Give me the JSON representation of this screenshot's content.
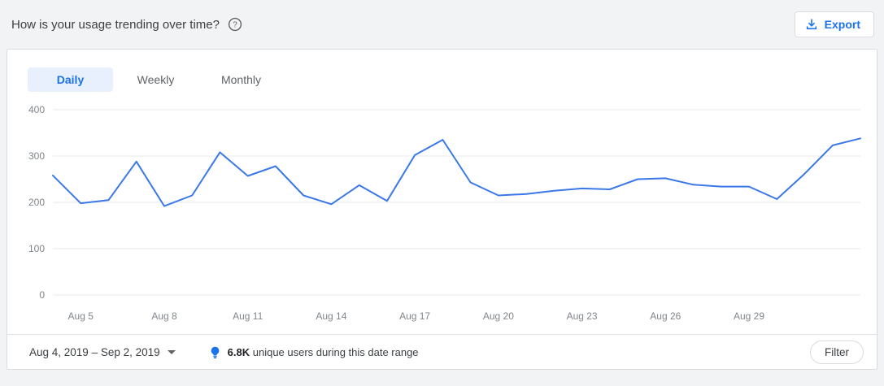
{
  "header": {
    "title": "How is your usage trending over time?",
    "export_label": "Export"
  },
  "tabs": [
    {
      "label": "Daily",
      "active": true
    },
    {
      "label": "Weekly",
      "active": false
    },
    {
      "label": "Monthly",
      "active": false
    }
  ],
  "chart_data": {
    "type": "line",
    "title": "",
    "xlabel": "",
    "ylabel": "",
    "ylim": [
      0,
      400
    ],
    "y_ticks": [
      0,
      100,
      200,
      300,
      400
    ],
    "grid": true,
    "legend": "none",
    "line_color": "#3b78e7",
    "grid_color": "#e8eaed",
    "x": [
      "Aug 4",
      "Aug 5",
      "Aug 6",
      "Aug 7",
      "Aug 8",
      "Aug 9",
      "Aug 10",
      "Aug 11",
      "Aug 12",
      "Aug 13",
      "Aug 14",
      "Aug 15",
      "Aug 16",
      "Aug 17",
      "Aug 18",
      "Aug 19",
      "Aug 20",
      "Aug 21",
      "Aug 22",
      "Aug 23",
      "Aug 24",
      "Aug 25",
      "Aug 26",
      "Aug 27",
      "Aug 28",
      "Aug 29",
      "Aug 30",
      "Aug 31",
      "Sep 1",
      "Sep 2"
    ],
    "values": [
      258,
      198,
      205,
      288,
      192,
      215,
      308,
      257,
      278,
      215,
      196,
      237,
      203,
      302,
      335,
      243,
      215,
      218,
      225,
      230,
      228,
      250,
      252,
      238,
      234,
      234,
      207,
      262,
      323,
      338
    ],
    "x_tick_indices": [
      1,
      4,
      7,
      10,
      13,
      16,
      19,
      22,
      25
    ],
    "x_tick_labels": [
      "Aug 5",
      "Aug 8",
      "Aug 11",
      "Aug 14",
      "Aug 17",
      "Aug 20",
      "Aug 23",
      "Aug 26",
      "Aug 29"
    ]
  },
  "footer": {
    "date_range": "Aug 4, 2019 – Sep 2, 2019",
    "insight_value": "6.8K",
    "insight_text": "unique users during this date range",
    "filter_label": "Filter"
  },
  "colors": {
    "accent": "#1a73e8",
    "active_tab_bg": "#e8f0fe",
    "page_bg": "#f1f3f4",
    "card_border": "#dadce0"
  }
}
